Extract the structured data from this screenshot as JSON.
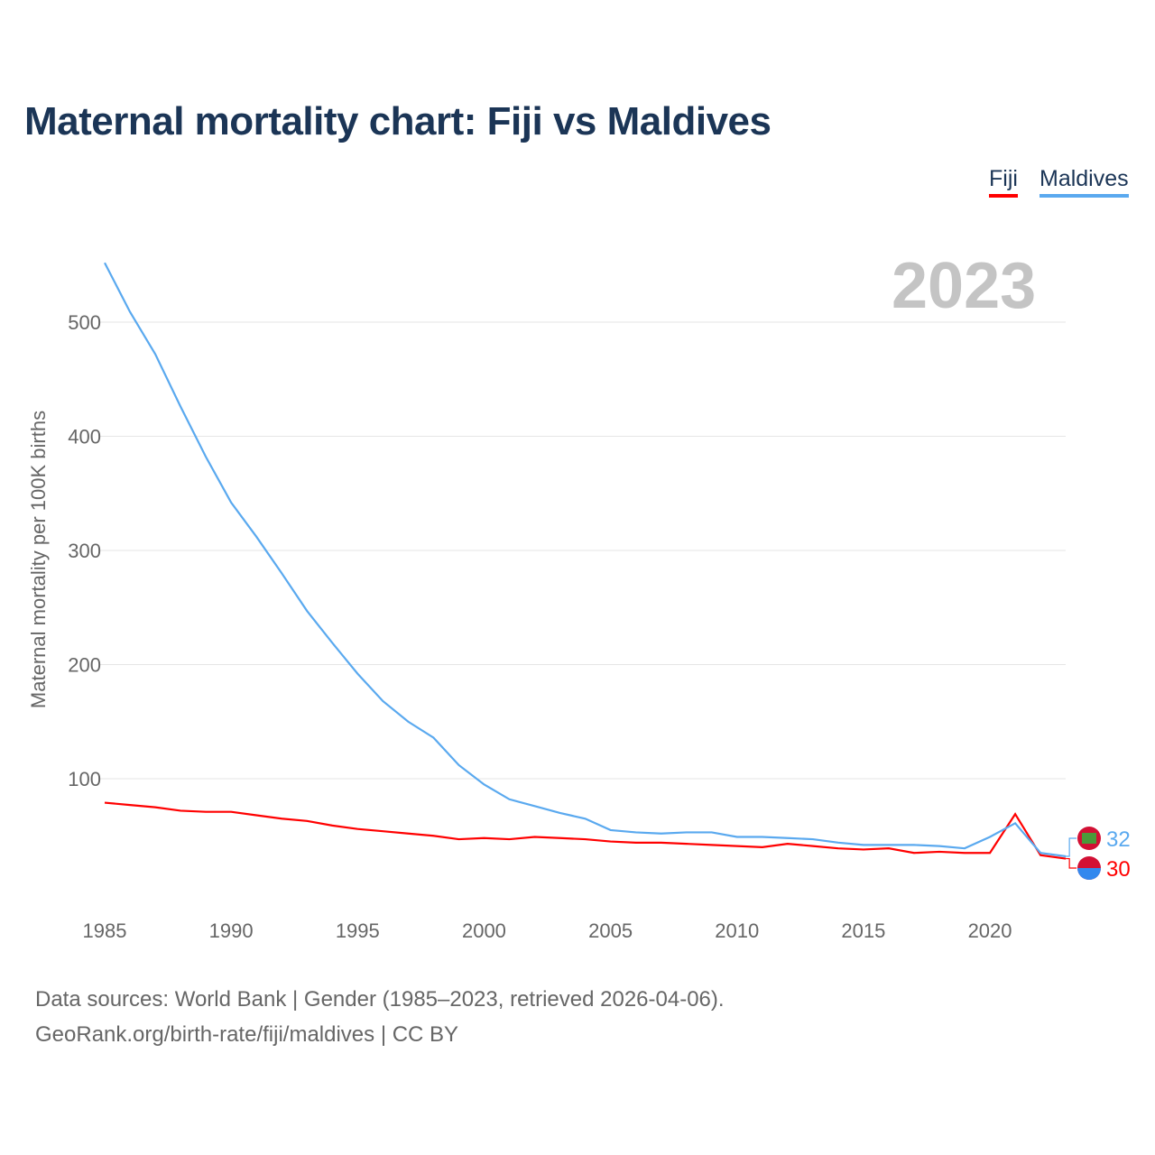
{
  "title": "Maternal mortality chart: Fiji vs Maldives",
  "year_label": "2023",
  "source_line1": "Data sources: World Bank | Gender (1985–2023, retrieved 2026-04-06).",
  "source_line2": "GeoRank.org/birth-rate/fiji/maldives | CC BY",
  "chart_data": {
    "type": "line",
    "title": "Maternal mortality chart: Fiji vs Maldives",
    "xlabel": "",
    "ylabel": "Maternal mortality per 100K births",
    "x": [
      1985,
      1986,
      1987,
      1988,
      1989,
      1990,
      1991,
      1992,
      1993,
      1994,
      1995,
      1996,
      1997,
      1998,
      1999,
      2000,
      2001,
      2002,
      2003,
      2004,
      2005,
      2006,
      2007,
      2008,
      2009,
      2010,
      2011,
      2012,
      2013,
      2014,
      2015,
      2016,
      2017,
      2018,
      2019,
      2020,
      2021,
      2022,
      2023
    ],
    "xticks": [
      "1985",
      "1990",
      "1995",
      "2000",
      "2005",
      "2010",
      "2015",
      "2020"
    ],
    "yticks": [
      "100",
      "200",
      "300",
      "400",
      "500"
    ],
    "xlim": [
      1985,
      2023
    ],
    "ylim": [
      0,
      560
    ],
    "grid": true,
    "legend": "top-right",
    "series": [
      {
        "name": "Fiji",
        "color": "#ff0000",
        "end_label": "30",
        "values": [
          79,
          77,
          75,
          72,
          71,
          71,
          68,
          65,
          63,
          59,
          56,
          54,
          52,
          50,
          47,
          48,
          47,
          49,
          48,
          47,
          45,
          44,
          44,
          43,
          42,
          41,
          40,
          43,
          41,
          39,
          38,
          39,
          35,
          36,
          35,
          35,
          69,
          33,
          30
        ]
      },
      {
        "name": "Maldives",
        "color": "#5aa9ef",
        "end_label": "32",
        "values": [
          552,
          509,
          472,
          426,
          382,
          342,
          312,
          280,
          247,
          219,
          192,
          168,
          150,
          136,
          112,
          95,
          82,
          76,
          70,
          65,
          55,
          53,
          52,
          53,
          53,
          49,
          49,
          48,
          47,
          44,
          42,
          42,
          42,
          41,
          39,
          49,
          61,
          35,
          32
        ]
      }
    ]
  }
}
